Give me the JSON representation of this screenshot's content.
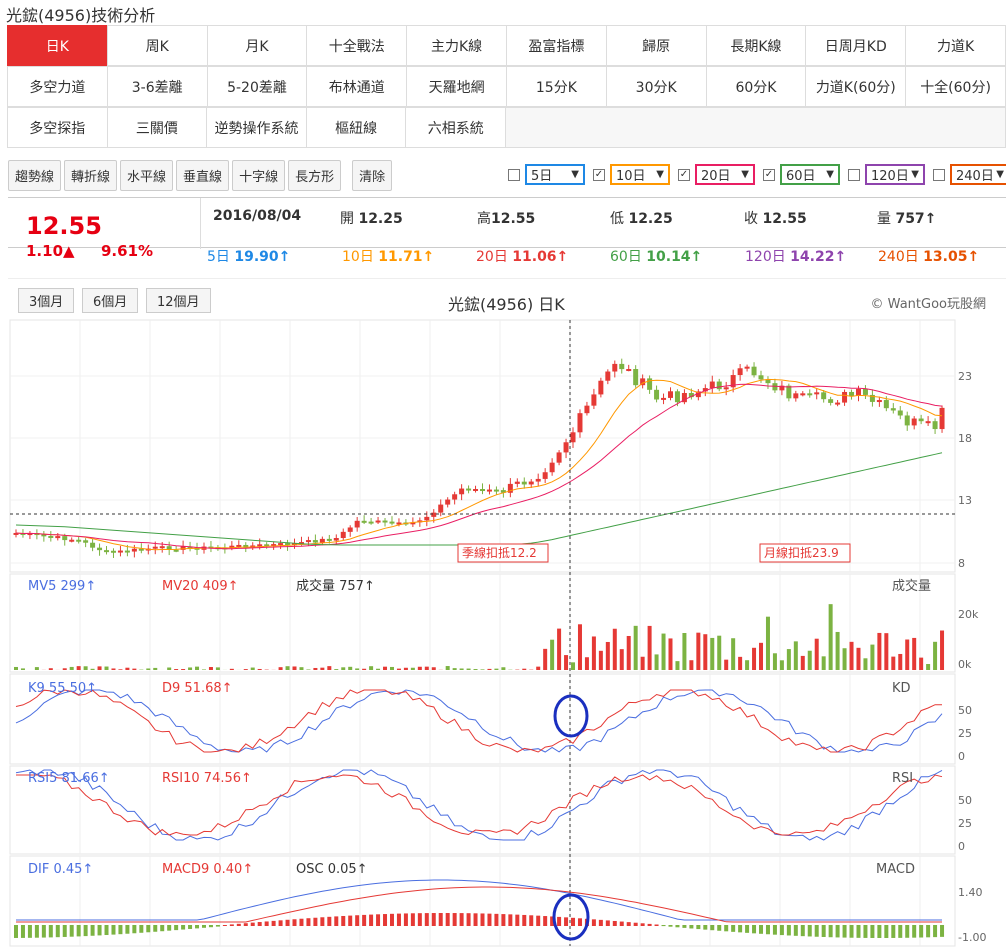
{
  "page": {
    "title": "光鋐(4956)技術分析"
  },
  "tabs": {
    "row1": [
      "日K",
      "周K",
      "月K",
      "十全戰法",
      "主力K線",
      "盈富指標",
      "歸原",
      "長期K線",
      "日周月KD",
      "力道K"
    ],
    "row2": [
      "多空力道",
      "3-6差離",
      "5-20差離",
      "布林通道",
      "天羅地網",
      "15分K",
      "30分K",
      "60分K",
      "力道K(60分)",
      "十全(60分)"
    ],
    "row3": [
      "多空探指",
      "三關價",
      "逆勢操作系統",
      "樞紐線",
      "六相系統"
    ]
  },
  "toolbar": [
    "趨勢線",
    "轉折線",
    "水平線",
    "垂直線",
    "十字線",
    "長方形",
    "清除"
  ],
  "ma_select": [
    {
      "checked": false,
      "value": "5日",
      "color": "#1e88e5"
    },
    {
      "checked": true,
      "value": "10日",
      "color": "#ff9800"
    },
    {
      "checked": true,
      "value": "20日",
      "color": "#e91e63"
    },
    {
      "checked": true,
      "value": "60日",
      "color": "#43a047"
    },
    {
      "checked": false,
      "value": "120日",
      "color": "#8e44ad"
    },
    {
      "checked": false,
      "value": "240日",
      "color": "#e65100"
    }
  ],
  "quote": {
    "price": "12.55",
    "change": "1.10▲",
    "pct": "9.61%",
    "date": "2016/08/04",
    "open_label": "開",
    "open": "12.25",
    "high_label": "高",
    "high": "12.55",
    "low_label": "低",
    "low": "12.25",
    "close_label": "收",
    "close": "12.55",
    "vol_label": "量",
    "vol": "757↑",
    "ma": [
      {
        "label": "5日",
        "value": "19.90↑",
        "color": "#1e88e5"
      },
      {
        "label": "10日",
        "value": "11.71↑",
        "color": "#ff9800"
      },
      {
        "label": "20日",
        "value": "11.06↑",
        "color": "#e53935"
      },
      {
        "label": "60日",
        "value": "10.14↑",
        "color": "#43a047"
      },
      {
        "label": "120日",
        "value": "14.22↑",
        "color": "#8e44ad"
      },
      {
        "label": "240日",
        "value": "13.05↑",
        "color": "#e65100"
      }
    ]
  },
  "chart": {
    "title": "光鋐(4956) 日K",
    "brand": "© WantGoo玩股網",
    "ranges": [
      "3個月",
      "6個月",
      "12個月"
    ],
    "price_ticks": [
      "23",
      "18",
      "13",
      "8"
    ],
    "annotations": [
      "季線扣抵12.2",
      "月線扣抵23.9"
    ],
    "volume": {
      "mv5_label": "MV5",
      "mv5": "299↑",
      "mv20_label": "MV20",
      "mv20": "409↑",
      "vol_label": "成交量",
      "vol": "757↑",
      "name": "成交量",
      "ticks": [
        "20k",
        "0k"
      ]
    },
    "kd": {
      "k_label": "K9",
      "k": "55.50↑",
      "d_label": "D9",
      "d": "51.68↑",
      "name": "KD",
      "ticks": [
        "50",
        "25",
        "0"
      ]
    },
    "rsi": {
      "r5_label": "RSI5",
      "r5": "81.66↑",
      "r10_label": "RSI10",
      "r10": "74.56↑",
      "name": "RSI",
      "ticks": [
        "50",
        "25",
        "0"
      ]
    },
    "macd": {
      "dif_label": "DIF",
      "dif": "0.45↑",
      "macd_label": "MACD9",
      "macd": "0.40↑",
      "osc_label": "OSC",
      "osc": "0.05↑",
      "name": "MACD",
      "ticks": [
        "1.40",
        "-1.00"
      ]
    }
  }
}
